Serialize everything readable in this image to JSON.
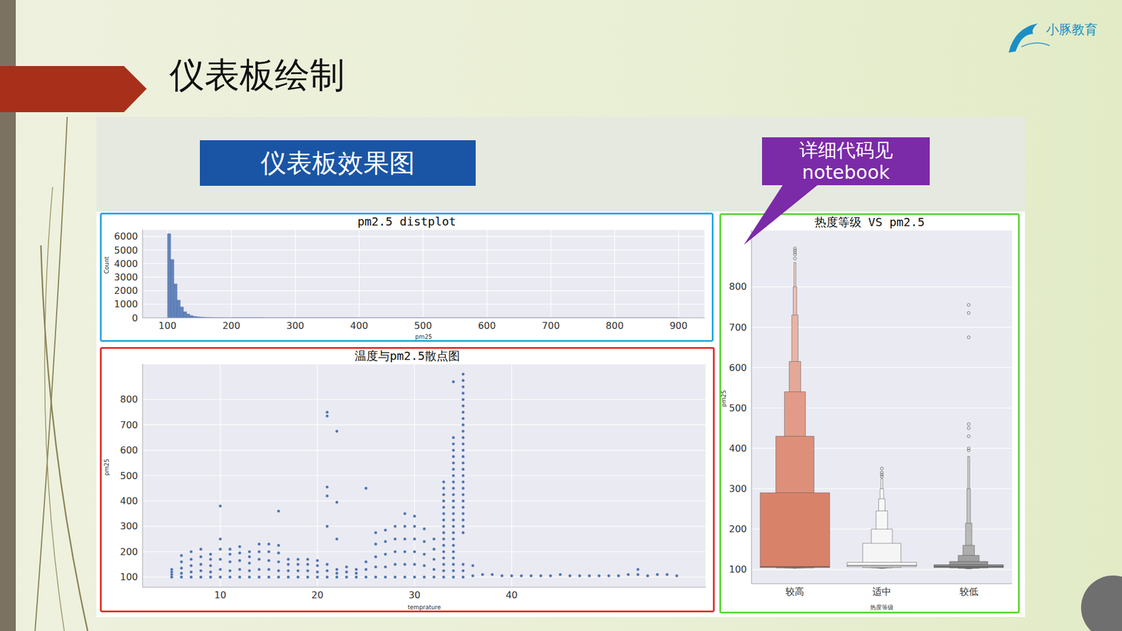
{
  "slide": {
    "title": "仪表板绘制",
    "badge": "仪表板效果图",
    "callout": [
      "详细代码见",
      "notebook"
    ],
    "logo": "小豚教育"
  },
  "chart_data": [
    {
      "type": "histogram",
      "title": "pm2.5 distplot",
      "x_label": "pm25",
      "y_label": "Count",
      "bins": [
        100,
        105,
        110,
        115,
        120,
        125,
        130,
        135,
        140,
        145,
        150,
        155,
        160,
        165,
        170,
        175,
        180,
        185,
        190,
        195,
        200,
        250,
        300,
        400,
        500,
        600,
        700,
        800,
        900
      ],
      "counts": [
        6200,
        4300,
        2500,
        1300,
        800,
        450,
        280,
        170,
        110,
        80,
        60,
        45,
        35,
        28,
        22,
        18,
        15,
        12,
        10,
        8,
        25,
        12,
        8,
        5,
        3,
        2,
        2,
        1
      ],
      "color": "#4c72b0",
      "xlim": [
        61,
        941
      ],
      "xticks": [
        100,
        200,
        300,
        400,
        500,
        600,
        700,
        800,
        900
      ],
      "ylim": [
        0,
        6500
      ],
      "yticks": [
        0,
        1000,
        2000,
        3000,
        4000,
        5000,
        6000
      ],
      "grid": true
    },
    {
      "type": "scatter",
      "title": "温度与pm2.5散点图",
      "x_label": "temprature",
      "y_label": "pm25",
      "x": [
        5,
        5,
        5,
        5,
        6,
        6,
        6,
        6,
        6,
        7,
        7,
        7,
        7,
        7,
        8,
        8,
        8,
        8,
        8,
        9,
        9,
        9,
        9,
        9,
        10,
        10,
        10,
        10,
        10,
        10,
        11,
        11,
        11,
        11,
        11,
        12,
        12,
        12,
        12,
        12,
        13,
        13,
        13,
        13,
        13,
        14,
        14,
        14,
        14,
        14,
        15,
        15,
        15,
        15,
        15,
        16,
        16,
        16,
        16,
        16,
        16,
        17,
        17,
        17,
        17,
        18,
        18,
        18,
        18,
        19,
        19,
        19,
        19,
        20,
        20,
        20,
        20,
        21,
        21,
        21,
        21,
        21,
        21,
        21,
        21,
        22,
        22,
        22,
        22,
        22,
        22,
        23,
        23,
        23,
        24,
        24,
        24,
        25,
        25,
        25,
        25,
        26,
        26,
        26,
        26,
        26,
        27,
        27,
        27,
        27,
        27,
        28,
        28,
        28,
        28,
        28,
        29,
        29,
        29,
        29,
        29,
        29,
        30,
        30,
        30,
        30,
        30,
        30,
        31,
        31,
        31,
        31,
        31,
        32,
        32,
        32,
        32,
        32,
        33,
        33,
        33,
        33,
        33,
        33,
        33,
        33,
        33,
        33,
        33,
        33,
        33,
        33,
        33,
        33,
        34,
        34,
        34,
        34,
        34,
        34,
        34,
        34,
        34,
        34,
        34,
        34,
        34,
        34,
        34,
        34,
        34,
        34,
        34,
        34,
        34,
        34,
        34,
        34,
        35,
        35,
        35,
        35,
        35,
        35,
        35,
        35,
        35,
        35,
        35,
        35,
        35,
        35,
        35,
        35,
        35,
        35,
        35,
        35,
        35,
        35,
        35,
        35,
        35,
        35,
        35,
        35,
        35,
        36,
        36,
        37,
        38,
        39,
        40,
        41,
        42,
        43,
        44,
        45,
        46,
        47,
        48,
        49,
        50,
        51,
        52,
        53,
        53,
        54,
        55,
        56,
        57
      ],
      "values": [
        100,
        110,
        120,
        130,
        100,
        115,
        135,
        160,
        185,
        100,
        120,
        145,
        170,
        200,
        100,
        125,
        150,
        180,
        210,
        100,
        120,
        145,
        170,
        190,
        100,
        130,
        170,
        210,
        250,
        380,
        100,
        125,
        160,
        190,
        210,
        100,
        130,
        165,
        195,
        220,
        100,
        125,
        155,
        180,
        200,
        100,
        130,
        170,
        200,
        230,
        100,
        130,
        165,
        200,
        230,
        100,
        125,
        160,
        195,
        225,
        360,
        100,
        125,
        150,
        170,
        100,
        125,
        150,
        170,
        100,
        125,
        150,
        170,
        100,
        120,
        145,
        165,
        100,
        125,
        150,
        300,
        420,
        455,
        735,
        750,
        100,
        115,
        130,
        250,
        395,
        675,
        100,
        120,
        140,
        100,
        115,
        130,
        100,
        130,
        160,
        450,
        100,
        140,
        180,
        230,
        275,
        100,
        140,
        190,
        240,
        285,
        100,
        150,
        200,
        250,
        300,
        100,
        150,
        200,
        250,
        300,
        350,
        100,
        150,
        200,
        250,
        300,
        340,
        100,
        145,
        190,
        240,
        290,
        100,
        130,
        170,
        210,
        250,
        100,
        125,
        150,
        175,
        200,
        225,
        250,
        275,
        300,
        325,
        350,
        375,
        400,
        425,
        450,
        475,
        100,
        125,
        150,
        175,
        200,
        225,
        250,
        275,
        300,
        325,
        350,
        375,
        400,
        425,
        450,
        475,
        500,
        525,
        550,
        575,
        600,
        625,
        650,
        870,
        100,
        125,
        150,
        275,
        300,
        325,
        350,
        375,
        400,
        425,
        450,
        475,
        500,
        525,
        550,
        575,
        600,
        625,
        650,
        675,
        700,
        725,
        750,
        775,
        800,
        825,
        850,
        875,
        900,
        105,
        145,
        110,
        110,
        105,
        105,
        105,
        105,
        105,
        105,
        110,
        105,
        105,
        105,
        105,
        105,
        105,
        110,
        110,
        130,
        105,
        110,
        110,
        105
      ],
      "color": "#4c72b0",
      "xlim": [
        2,
        60
      ],
      "xticks": [
        10,
        20,
        30,
        40
      ],
      "ylim": [
        60,
        940
      ],
      "yticks": [
        100,
        200,
        300,
        400,
        500,
        600,
        700,
        800
      ],
      "grid": true
    },
    {
      "type": "boxen",
      "title": "热度等级 VS pm2.5",
      "x_label": "热度等级",
      "y_label": "pm25",
      "categories": [
        "较高",
        "适中",
        "较低"
      ],
      "colors": [
        "#d9826a",
        "#f4f4f4",
        "#8a8a8a"
      ],
      "medians": [
        107,
        110,
        107
      ],
      "levels": [
        [
          [
            105,
            290
          ],
          [
            104,
            430
          ],
          [
            104,
            540
          ],
          [
            104,
            615
          ],
          [
            104,
            730
          ],
          [
            104,
            800
          ],
          [
            103,
            860
          ]
        ],
        [
          [
            107,
            118
          ],
          [
            105,
            165
          ],
          [
            104,
            200
          ],
          [
            104,
            245
          ],
          [
            103,
            275
          ],
          [
            103,
            300
          ],
          [
            103,
            325
          ]
        ],
        [
          [
            105,
            112
          ],
          [
            104,
            120
          ],
          [
            103,
            135
          ],
          [
            103,
            160
          ],
          [
            102,
            215
          ],
          [
            102,
            300
          ],
          [
            102,
            380
          ]
        ]
      ],
      "outliers": [
        [
          870,
          880,
          885,
          890,
          895
        ],
        [
          330,
          335,
          340,
          350
        ],
        [
          395,
          400,
          430,
          450,
          460,
          675,
          735,
          755
        ]
      ],
      "ylim": [
        65,
        940
      ],
      "yticks": [
        100,
        200,
        300,
        400,
        500,
        600,
        700,
        800
      ],
      "grid": true
    }
  ]
}
